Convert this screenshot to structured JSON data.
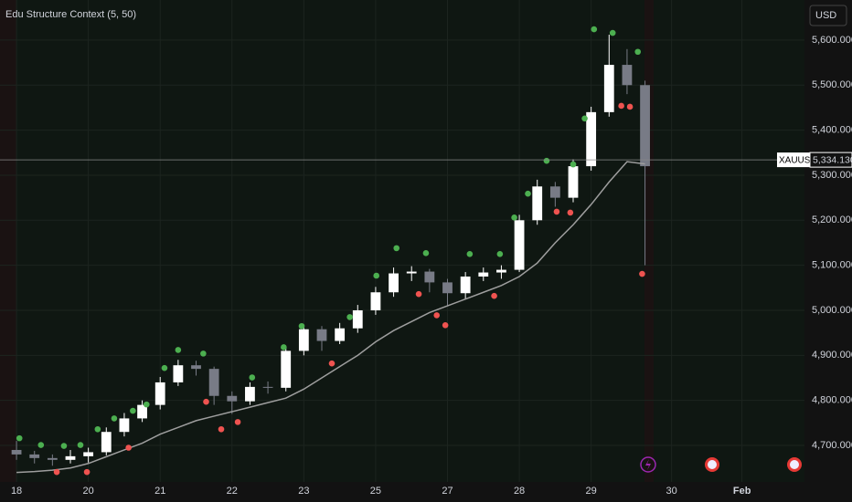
{
  "chart_data": {
    "type": "candlestick",
    "title": "Edu Structure Context (5, 50)",
    "currency": "USD",
    "symbol": "XAUUSD",
    "last_price": {
      "value": 5334.13,
      "label": "5,334.130"
    },
    "xlim": [
      -0.23,
      10.97
    ],
    "ylim": [
      4619,
      5689
    ],
    "xticks": [
      {
        "value": 0,
        "label": "18"
      },
      {
        "value": 1,
        "label": "20"
      },
      {
        "value": 2,
        "label": "21"
      },
      {
        "value": 3,
        "label": "22"
      },
      {
        "value": 4,
        "label": "23"
      },
      {
        "value": 5,
        "label": "25"
      },
      {
        "value": 6,
        "label": "27"
      },
      {
        "value": 7,
        "label": "28"
      },
      {
        "value": 8,
        "label": "29"
      },
      {
        "value": 9.12,
        "label": "30"
      },
      {
        "value": 10.1,
        "label": "Feb"
      }
    ],
    "yticks": [
      {
        "value": 4700,
        "label": "4,700.000"
      },
      {
        "value": 4800,
        "label": "4,800.000"
      },
      {
        "value": 4900,
        "label": "4,900.000"
      },
      {
        "value": 5000,
        "label": "5,000.000"
      },
      {
        "value": 5100,
        "label": "5,100.000"
      },
      {
        "value": 5200,
        "label": "5,200.000"
      },
      {
        "value": 5300,
        "label": "5,300.000"
      },
      {
        "value": 5400,
        "label": "5,400.000"
      },
      {
        "value": 5500,
        "label": "5,500.000"
      },
      {
        "value": 5600,
        "label": "5,600.000"
      }
    ],
    "up_color": "#ffffff",
    "down_color": "#787b86",
    "x": [
      0,
      0.25,
      0.5,
      0.75,
      1,
      1.25,
      1.5,
      1.75,
      2,
      2.25,
      2.5,
      2.75,
      3,
      3.25,
      3.5,
      3.75,
      4,
      4.25,
      4.5,
      4.75,
      5,
      5.25,
      5.5,
      5.75,
      6,
      6.25,
      6.5,
      6.75,
      7,
      7.25,
      7.5,
      7.75,
      8,
      8.25,
      8.5,
      8.75
    ],
    "open": [
      4690,
      4680,
      4672,
      4668,
      4676,
      4685,
      4730,
      4760,
      4790,
      4840,
      4878,
      4870,
      4810,
      4798,
      4830,
      4828,
      4910,
      4958,
      4932,
      4960,
      5000,
      5040,
      5082,
      5086,
      5062,
      5038,
      5075,
      5084,
      5090,
      5200,
      5275,
      5250,
      5320,
      5440,
      5545,
      5500
    ],
    "high": [
      4710,
      4688,
      4680,
      4690,
      4695,
      4740,
      4772,
      4800,
      4852,
      4890,
      4888,
      4875,
      4820,
      4840,
      4842,
      4920,
      4968,
      4965,
      4972,
      5012,
      5052,
      5095,
      5098,
      5092,
      5070,
      5085,
      5095,
      5100,
      5212,
      5290,
      5285,
      5335,
      5452,
      5612,
      5580,
      5510
    ],
    "low": [
      4668,
      4660,
      4655,
      4660,
      4662,
      4678,
      4720,
      4752,
      4780,
      4832,
      4855,
      4790,
      4770,
      4790,
      4815,
      4820,
      4900,
      4910,
      4925,
      4950,
      4990,
      5030,
      5065,
      5040,
      5010,
      5025,
      5065,
      5070,
      5085,
      5190,
      5230,
      5240,
      5310,
      5430,
      5480,
      5100
    ],
    "close": [
      4680,
      4672,
      4668,
      4676,
      4685,
      4730,
      4760,
      4790,
      4840,
      4878,
      4870,
      4810,
      4798,
      4830,
      4828,
      4910,
      4958,
      4932,
      4960,
      5000,
      5040,
      5082,
      5086,
      5062,
      5038,
      5075,
      5084,
      5090,
      5200,
      5275,
      5250,
      5320,
      5440,
      5545,
      5500,
      5320
    ],
    "ma": {
      "color": "#9e9e9e",
      "values": [
        4640,
        4642,
        4645,
        4650,
        4660,
        4675,
        4690,
        4705,
        4725,
        4740,
        4755,
        4765,
        4775,
        4785,
        4795,
        4805,
        4825,
        4850,
        4875,
        4900,
        4930,
        4955,
        4975,
        4995,
        5010,
        5025,
        5040,
        5055,
        5075,
        5105,
        5150,
        5190,
        5235,
        5285,
        5330,
        5325
      ]
    },
    "pivot_highs": {
      "color": "#4caf50",
      "x": [
        0.04,
        0.34,
        0.66,
        0.89,
        1.13,
        1.36,
        1.62,
        1.81,
        2.06,
        2.25,
        2.6,
        3.28,
        3.72,
        3.97,
        4.64,
        5.01,
        5.29,
        5.7,
        6.31,
        6.73,
        6.93,
        7.12,
        7.38,
        7.75,
        7.91,
        8.04,
        8.3,
        8.65
      ],
      "y": [
        4716,
        4701,
        4699,
        4701,
        4736,
        4760,
        4777,
        4791,
        4872,
        4912,
        4904,
        4851,
        4918,
        4965,
        4985,
        5077,
        5138,
        5127,
        5125,
        5125,
        5206,
        5259,
        5332,
        5324,
        5426,
        5624,
        5616,
        5574
      ]
    },
    "pivot_lows": {
      "color": "#ef5350",
      "x": [
        0.56,
        0.98,
        1.56,
        2.64,
        2.85,
        3.08,
        4.39,
        5.6,
        5.85,
        5.97,
        6.65,
        7.52,
        7.71,
        8.42,
        8.54,
        8.71
      ],
      "y": [
        4641,
        4641,
        4695,
        4797,
        4736,
        4752,
        4882,
        5036,
        4989,
        4967,
        5032,
        5219,
        5217,
        5454,
        5452,
        5081
      ]
    }
  }
}
